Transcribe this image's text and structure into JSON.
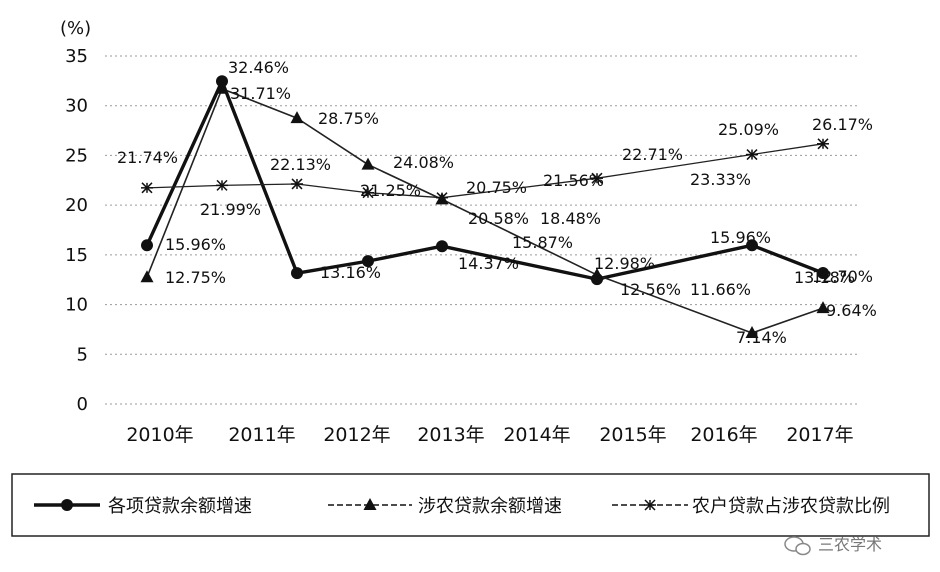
{
  "chart_data": {
    "type": "line",
    "unit_label": "(%)",
    "categories": [
      "2010年",
      "2011年",
      "2012年",
      "2013年",
      "2014年",
      "2015年",
      "2016年",
      "2017年"
    ],
    "y_ticks": [
      "0",
      "5",
      "10",
      "15",
      "20",
      "25",
      "30",
      "35"
    ],
    "ylim": [
      0,
      35
    ],
    "grid": true,
    "legend_position": "bottom",
    "series": [
      {
        "name": "各项贷款余额增速",
        "marker": "circle",
        "values": [
          15.96,
          32.46,
          13.16,
          14.37,
          15.87,
          12.56,
          15.96,
          13.18
        ],
        "labels": [
          "15.96%",
          "32.46%",
          "13.16%",
          "14.37%",
          "15.87%",
          "12.56%",
          "15.96%",
          "13.18%"
        ]
      },
      {
        "name": "涉农贷款余额增速",
        "marker": "triangle",
        "values": [
          12.75,
          31.71,
          28.75,
          24.08,
          20.58,
          12.98,
          7.14,
          9.64
        ],
        "labels": [
          "12.75%",
          "31.71%",
          "28.75%",
          "24.08%",
          "20.58%",
          "12.98%",
          "7.14%",
          "9.64%"
        ]
      },
      {
        "name": "农户贷款占涉农贷款比例",
        "marker": "star",
        "values": [
          21.74,
          21.99,
          22.13,
          21.25,
          20.75,
          22.71,
          25.09,
          26.17
        ],
        "labels": [
          "21.74%",
          "21.99%",
          "22.13%",
          "21.25%",
          "20.75%",
          "22.71%",
          "25.09%",
          "26.17%"
        ]
      }
    ],
    "extra_labels": [
      "21.56%",
      "18.48%",
      "11.66%",
      "23.33%",
      "12.70%"
    ]
  },
  "watermark": "三农学术"
}
